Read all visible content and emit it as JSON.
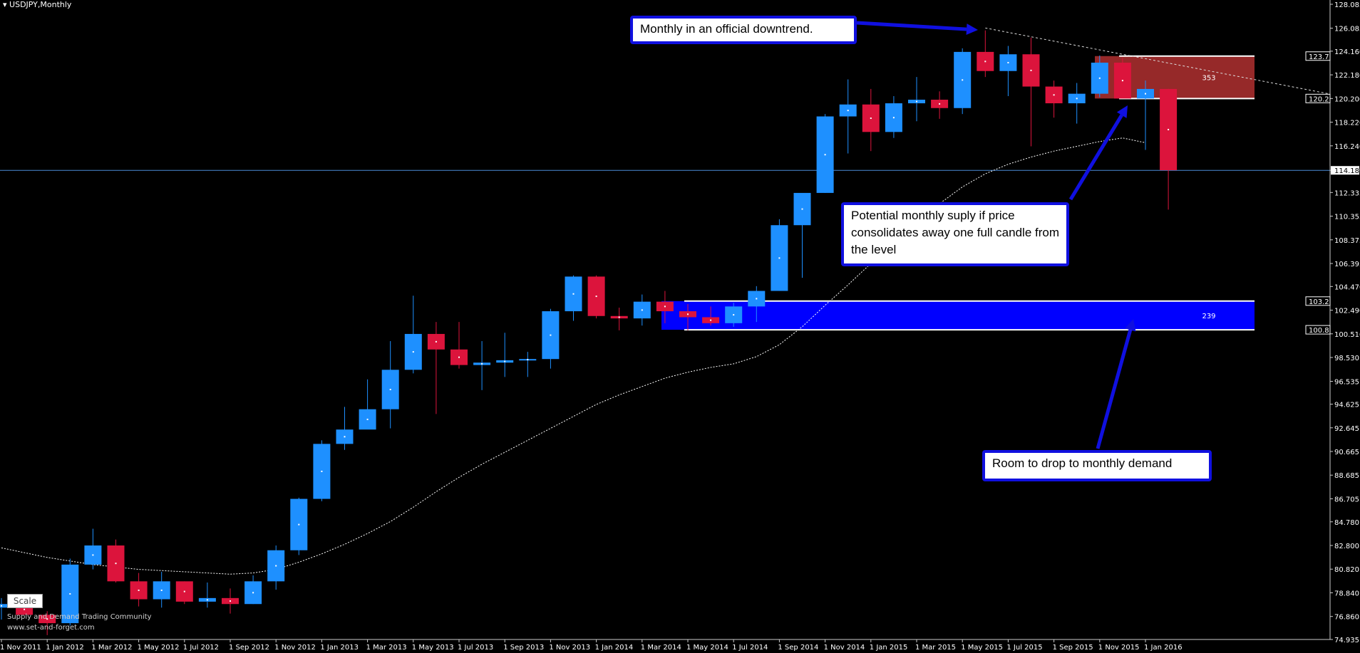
{
  "symbol_title": "USDJPY,Monthly",
  "scale_label": "Scale",
  "watermark": {
    "line1": "Supply and Demand Trading Community",
    "line2": "www.set-and-forget.com"
  },
  "callouts": {
    "downtrend": "Monthly in an official downtrend.",
    "supply": "Potential monthly suply if price consolidates away one full candle from the level",
    "demand": "Room to drop to monthly demand"
  },
  "colors": {
    "bull": "#1e90ff",
    "bear": "#dc143c",
    "supply_zone": "#b03030",
    "demand_zone": "#0000ff",
    "callout_border": "#1010e0",
    "arrow": "#1010e0"
  },
  "chart_data": {
    "type": "candlestick",
    "title": "USDJPY,Monthly",
    "xlabel": "",
    "ylabel": "",
    "ylim": [
      74.935,
      128.085
    ],
    "y_ticks": [
      "128.085",
      "126.085",
      "124.160",
      "122.180",
      "120.200",
      "118.220",
      "116.240",
      "114.189",
      "112.335",
      "110.355",
      "108.375",
      "106.395",
      "104.470",
      "102.490",
      "100.510",
      "98.530",
      "96.535",
      "94.625",
      "92.645",
      "90.665",
      "88.685",
      "86.705",
      "84.780",
      "82.800",
      "80.820",
      "78.840",
      "76.860",
      "74.935"
    ],
    "x_ticks": [
      "1 Nov 2011",
      "1 Jan 2012",
      "1 Mar 2012",
      "1 May 2012",
      "1 Jul 2012",
      "1 Sep 2012",
      "1 Nov 2012",
      "1 Jan 2013",
      "1 Mar 2013",
      "1 May 2013",
      "1 Jul 2013",
      "1 Sep 2013",
      "1 Nov 2013",
      "1 Jan 2014",
      "1 Mar 2014",
      "1 May 2014",
      "1 Jul 2014",
      "1 Sep 2014",
      "1 Nov 2014",
      "1 Jan 2015",
      "1 Mar 2015",
      "1 May 2015",
      "1 Jul 2015",
      "1 Sep 2015",
      "1 Nov 2015",
      "1 Jan 2016"
    ],
    "current_price": 114.189,
    "price_tags": [
      {
        "label": "123.7",
        "value": 123.75
      },
      {
        "label": "120.2",
        "value": 120.2
      },
      {
        "label": "103.2",
        "value": 103.25
      },
      {
        "label": "100.8",
        "value": 100.85
      }
    ],
    "candles": [
      {
        "date": "2011-11",
        "o": 77.6,
        "h": 78.4,
        "l": 76.6,
        "c": 77.9
      },
      {
        "date": "2011-12",
        "o": 77.9,
        "h": 78.3,
        "l": 77.1,
        "c": 77.0
      },
      {
        "date": "2012-01",
        "o": 77.0,
        "h": 77.3,
        "l": 75.3,
        "c": 76.3
      },
      {
        "date": "2012-02",
        "o": 76.3,
        "h": 81.7,
        "l": 76.1,
        "c": 81.2
      },
      {
        "date": "2012-03",
        "o": 81.2,
        "h": 84.2,
        "l": 80.8,
        "c": 82.8
      },
      {
        "date": "2012-04",
        "o": 82.8,
        "h": 83.3,
        "l": 79.7,
        "c": 79.8
      },
      {
        "date": "2012-05",
        "o": 79.8,
        "h": 80.5,
        "l": 77.7,
        "c": 78.3
      },
      {
        "date": "2012-06",
        "o": 78.3,
        "h": 80.6,
        "l": 77.6,
        "c": 79.8
      },
      {
        "date": "2012-07",
        "o": 79.8,
        "h": 79.8,
        "l": 77.9,
        "c": 78.1
      },
      {
        "date": "2012-08",
        "o": 78.1,
        "h": 79.7,
        "l": 77.6,
        "c": 78.4
      },
      {
        "date": "2012-09",
        "o": 78.4,
        "h": 79.2,
        "l": 77.1,
        "c": 77.9
      },
      {
        "date": "2012-10",
        "o": 77.9,
        "h": 80.3,
        "l": 77.9,
        "c": 79.8
      },
      {
        "date": "2012-11",
        "o": 79.8,
        "h": 82.8,
        "l": 79.1,
        "c": 82.4
      },
      {
        "date": "2012-12",
        "o": 82.4,
        "h": 86.8,
        "l": 82.0,
        "c": 86.7
      },
      {
        "date": "2013-01",
        "o": 86.7,
        "h": 91.6,
        "l": 86.5,
        "c": 91.3
      },
      {
        "date": "2013-02",
        "o": 91.3,
        "h": 94.4,
        "l": 90.8,
        "c": 92.5
      },
      {
        "date": "2013-03",
        "o": 92.5,
        "h": 96.7,
        "l": 92.6,
        "c": 94.2
      },
      {
        "date": "2013-04",
        "o": 94.2,
        "h": 99.9,
        "l": 92.6,
        "c": 97.5
      },
      {
        "date": "2013-05",
        "o": 97.5,
        "h": 103.7,
        "l": 97.2,
        "c": 100.5
      },
      {
        "date": "2013-06",
        "o": 100.5,
        "h": 101.5,
        "l": 93.8,
        "c": 99.2
      },
      {
        "date": "2013-07",
        "o": 99.2,
        "h": 101.5,
        "l": 97.6,
        "c": 97.9
      },
      {
        "date": "2013-08",
        "o": 97.9,
        "h": 99.9,
        "l": 95.8,
        "c": 98.1
      },
      {
        "date": "2013-09",
        "o": 98.1,
        "h": 100.6,
        "l": 96.9,
        "c": 98.3
      },
      {
        "date": "2013-10",
        "o": 98.3,
        "h": 99.0,
        "l": 96.9,
        "c": 98.4
      },
      {
        "date": "2013-11",
        "o": 98.4,
        "h": 102.6,
        "l": 97.6,
        "c": 102.4
      },
      {
        "date": "2013-12",
        "o": 102.4,
        "h": 105.4,
        "l": 101.6,
        "c": 105.3
      },
      {
        "date": "2014-01",
        "o": 105.3,
        "h": 105.4,
        "l": 101.8,
        "c": 102.0
      },
      {
        "date": "2014-02",
        "o": 102.0,
        "h": 102.7,
        "l": 100.8,
        "c": 101.8
      },
      {
        "date": "2014-03",
        "o": 101.8,
        "h": 103.8,
        "l": 101.2,
        "c": 103.2
      },
      {
        "date": "2014-04",
        "o": 103.2,
        "h": 104.1,
        "l": 101.4,
        "c": 102.4
      },
      {
        "date": "2014-05",
        "o": 102.4,
        "h": 103.0,
        "l": 100.8,
        "c": 101.9
      },
      {
        "date": "2014-06",
        "o": 101.9,
        "h": 102.8,
        "l": 101.2,
        "c": 101.4
      },
      {
        "date": "2014-07",
        "o": 101.4,
        "h": 103.1,
        "l": 101.1,
        "c": 102.8
      },
      {
        "date": "2014-08",
        "o": 102.8,
        "h": 104.5,
        "l": 101.5,
        "c": 104.1
      },
      {
        "date": "2014-09",
        "o": 104.1,
        "h": 110.1,
        "l": 104.1,
        "c": 109.6
      },
      {
        "date": "2014-10",
        "o": 109.6,
        "h": 112.1,
        "l": 105.2,
        "c": 112.3
      },
      {
        "date": "2014-11",
        "o": 112.3,
        "h": 118.9,
        "l": 112.3,
        "c": 118.7
      },
      {
        "date": "2014-12",
        "o": 118.7,
        "h": 121.8,
        "l": 115.6,
        "c": 119.7
      },
      {
        "date": "2015-01",
        "o": 119.7,
        "h": 121.0,
        "l": 115.8,
        "c": 117.4
      },
      {
        "date": "2015-02",
        "o": 117.4,
        "h": 120.4,
        "l": 116.9,
        "c": 119.8
      },
      {
        "date": "2015-03",
        "o": 119.8,
        "h": 122.0,
        "l": 118.3,
        "c": 120.1
      },
      {
        "date": "2015-04",
        "o": 120.1,
        "h": 120.8,
        "l": 118.5,
        "c": 119.4
      },
      {
        "date": "2015-05",
        "o": 119.4,
        "h": 124.4,
        "l": 118.9,
        "c": 124.1
      },
      {
        "date": "2015-06",
        "o": 124.1,
        "h": 125.9,
        "l": 122.0,
        "c": 122.5
      },
      {
        "date": "2015-07",
        "o": 122.5,
        "h": 124.6,
        "l": 120.4,
        "c": 123.9
      },
      {
        "date": "2015-08",
        "o": 123.9,
        "h": 125.3,
        "l": 116.2,
        "c": 121.2
      },
      {
        "date": "2015-09",
        "o": 121.2,
        "h": 121.7,
        "l": 118.6,
        "c": 119.8
      },
      {
        "date": "2015-10",
        "o": 119.8,
        "h": 121.5,
        "l": 118.1,
        "c": 120.6
      },
      {
        "date": "2015-11",
        "o": 120.6,
        "h": 123.8,
        "l": 120.3,
        "c": 123.2
      },
      {
        "date": "2015-12",
        "o": 123.2,
        "h": 123.6,
        "l": 120.3,
        "c": 120.2
      },
      {
        "date": "2016-01",
        "o": 120.2,
        "h": 121.7,
        "l": 115.9,
        "c": 121.0
      },
      {
        "date": "2016-02",
        "o": 121.0,
        "h": 121.0,
        "l": 110.9,
        "c": 114.2
      }
    ],
    "moving_average": {
      "style": "dotted white",
      "values": [
        82.6,
        82.2,
        81.8,
        81.5,
        81.2,
        81.0,
        80.8,
        80.7,
        80.6,
        80.5,
        80.4,
        80.5,
        80.8,
        81.4,
        82.1,
        82.9,
        83.8,
        84.8,
        86.0,
        87.3,
        88.5,
        89.6,
        90.6,
        91.6,
        92.6,
        93.6,
        94.6,
        95.4,
        96.1,
        96.8,
        97.3,
        97.7,
        98.0,
        98.6,
        99.6,
        101.1,
        102.9,
        104.6,
        106.4,
        108.2,
        109.9,
        111.4,
        112.8,
        113.9,
        114.7,
        115.3,
        115.8,
        116.2,
        116.6,
        116.9,
        116.5
      ]
    },
    "trendline": {
      "style": "dashed white",
      "from": {
        "date": "2015-06",
        "value": 126.1
      },
      "to": {
        "date": "2016-09",
        "value": 120.6
      }
    },
    "zones": [
      {
        "kind": "supply",
        "label": "353",
        "top": 123.75,
        "bottom": 120.2,
        "line_top": 123.75,
        "line_bottom": 120.2
      },
      {
        "kind": "demand",
        "label": "239",
        "top": 103.25,
        "bottom": 100.85,
        "line_top": 103.25,
        "line_bottom": 100.85
      }
    ]
  }
}
